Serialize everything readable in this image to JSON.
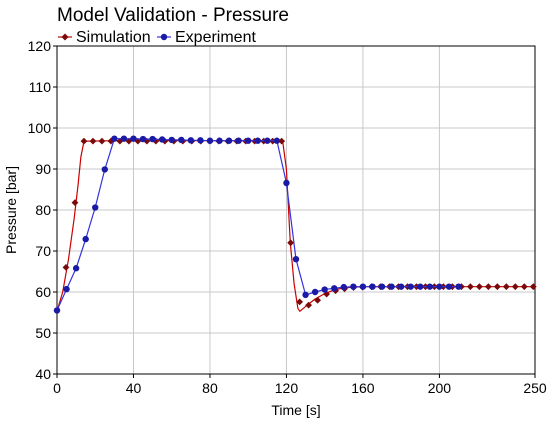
{
  "chart_data": {
    "type": "line",
    "title": "Model Validation - Pressure",
    "xlabel": "Time [s]",
    "ylabel": "Pressure [bar]",
    "xlim": [
      0,
      250
    ],
    "ylim": [
      40,
      120
    ],
    "xticks": [
      0,
      40,
      80,
      120,
      160,
      200,
      250
    ],
    "yticks": [
      40,
      50,
      60,
      70,
      80,
      90,
      100,
      110,
      120
    ],
    "grid": true,
    "legend_position": "top-left",
    "series": [
      {
        "name": "Simulation",
        "color": "#cc0000",
        "marker_color": "#7a0a0a",
        "marker": "diamond",
        "line": [
          [
            0,
            55.3
          ],
          [
            3,
            60
          ],
          [
            6,
            68
          ],
          [
            9,
            78
          ],
          [
            11,
            86
          ],
          [
            12.5,
            93
          ],
          [
            14,
            96.5
          ],
          [
            16,
            96.8
          ],
          [
            30,
            96.9
          ],
          [
            118,
            96.9
          ],
          [
            120,
            90
          ],
          [
            122,
            72
          ],
          [
            124,
            62
          ],
          [
            126,
            56
          ],
          [
            127,
            55.3
          ],
          [
            130,
            56.5
          ],
          [
            135,
            58.3
          ],
          [
            140,
            59.6
          ],
          [
            145,
            60.5
          ],
          [
            150,
            61
          ],
          [
            155,
            61.2
          ],
          [
            160,
            61.3
          ],
          [
            250,
            61.3
          ]
        ],
        "markers": [
          [
            0,
            55.5
          ],
          [
            4.7,
            66
          ],
          [
            9.4,
            81.8
          ],
          [
            14.1,
            96.8
          ],
          [
            18.8,
            96.8
          ],
          [
            23.5,
            96.8
          ],
          [
            28.2,
            96.8
          ],
          [
            32.9,
            96.8
          ],
          [
            37.6,
            96.8
          ],
          [
            42.3,
            96.8
          ],
          [
            47,
            96.8
          ],
          [
            51.7,
            96.8
          ],
          [
            56.4,
            96.8
          ],
          [
            61.1,
            96.8
          ],
          [
            65.8,
            96.8
          ],
          [
            70.5,
            96.8
          ],
          [
            75.2,
            96.8
          ],
          [
            79.9,
            96.8
          ],
          [
            84.6,
            96.8
          ],
          [
            89.3,
            96.8
          ],
          [
            94,
            96.8
          ],
          [
            98.7,
            96.8
          ],
          [
            103.4,
            96.8
          ],
          [
            108.1,
            96.8
          ],
          [
            112.8,
            96.8
          ],
          [
            117.5,
            96.8
          ],
          [
            122.2,
            72
          ],
          [
            126.9,
            57.6
          ],
          [
            131.6,
            56.8
          ],
          [
            136.3,
            58
          ],
          [
            141,
            59.5
          ],
          [
            145.7,
            60.3
          ],
          [
            150.4,
            60.8
          ],
          [
            155.1,
            61.1
          ],
          [
            159.8,
            61.2
          ],
          [
            164.5,
            61.3
          ],
          [
            169.2,
            61.3
          ],
          [
            173.9,
            61.3
          ],
          [
            178.6,
            61.3
          ],
          [
            183.3,
            61.3
          ],
          [
            188,
            61.3
          ],
          [
            192.7,
            61.3
          ],
          [
            197.4,
            61.3
          ],
          [
            202.1,
            61.3
          ],
          [
            206.8,
            61.3
          ],
          [
            211.5,
            61.3
          ],
          [
            216.2,
            61.3
          ],
          [
            220.9,
            61.3
          ],
          [
            225.6,
            61.3
          ],
          [
            230.3,
            61.3
          ],
          [
            235,
            61.3
          ],
          [
            239.7,
            61.3
          ],
          [
            244.4,
            61.3
          ],
          [
            249.1,
            61.3
          ]
        ]
      },
      {
        "name": "Experiment",
        "color": "#3333dd",
        "marker_color": "#1a1aa6",
        "marker": "circle",
        "line": [
          [
            0,
            55.5
          ],
          [
            5,
            60.7
          ],
          [
            10,
            65.8
          ],
          [
            15,
            72.9
          ],
          [
            20,
            80.6
          ],
          [
            25,
            89.9
          ],
          [
            30,
            97.4
          ],
          [
            35,
            97.4
          ],
          [
            40,
            97.4
          ],
          [
            45,
            97.3
          ],
          [
            50,
            97.3
          ],
          [
            55,
            97.2
          ],
          [
            60,
            97.1
          ],
          [
            65,
            97.1
          ],
          [
            70,
            97
          ],
          [
            75,
            97
          ],
          [
            80,
            96.9
          ],
          [
            85,
            96.9
          ],
          [
            90,
            96.9
          ],
          [
            95,
            96.9
          ],
          [
            100,
            96.9
          ],
          [
            105,
            96.9
          ],
          [
            110,
            96.9
          ],
          [
            115,
            96.9
          ],
          [
            120,
            86.6
          ],
          [
            125,
            68
          ],
          [
            130,
            59.3
          ],
          [
            135,
            60
          ],
          [
            140,
            60.6
          ],
          [
            145,
            60.9
          ],
          [
            150,
            61.2
          ],
          [
            155,
            61.3
          ],
          [
            160,
            61.3
          ],
          [
            165,
            61.3
          ],
          [
            170,
            61.3
          ],
          [
            175,
            61.3
          ],
          [
            180,
            61.3
          ],
          [
            185,
            61.3
          ],
          [
            190,
            61.3
          ],
          [
            195,
            61.3
          ],
          [
            200,
            61.3
          ],
          [
            205,
            61.3
          ],
          [
            210,
            61.3
          ]
        ],
        "markers": [
          [
            0,
            55.5
          ],
          [
            5,
            60.7
          ],
          [
            10,
            65.8
          ],
          [
            15,
            72.9
          ],
          [
            20,
            80.6
          ],
          [
            25,
            89.9
          ],
          [
            30,
            97.4
          ],
          [
            35,
            97.4
          ],
          [
            40,
            97.4
          ],
          [
            45,
            97.3
          ],
          [
            50,
            97.3
          ],
          [
            55,
            97.2
          ],
          [
            60,
            97.1
          ],
          [
            65,
            97.1
          ],
          [
            70,
            97
          ],
          [
            75,
            97
          ],
          [
            80,
            96.9
          ],
          [
            85,
            96.9
          ],
          [
            90,
            96.9
          ],
          [
            95,
            96.9
          ],
          [
            100,
            96.9
          ],
          [
            105,
            96.9
          ],
          [
            110,
            96.9
          ],
          [
            115,
            96.9
          ],
          [
            120,
            86.6
          ],
          [
            125,
            68
          ],
          [
            130,
            59.3
          ],
          [
            135,
            60
          ],
          [
            140,
            60.6
          ],
          [
            145,
            60.9
          ],
          [
            150,
            61.2
          ],
          [
            155,
            61.3
          ],
          [
            160,
            61.3
          ],
          [
            165,
            61.3
          ],
          [
            170,
            61.3
          ],
          [
            175,
            61.3
          ],
          [
            180,
            61.3
          ],
          [
            185,
            61.3
          ],
          [
            190,
            61.3
          ],
          [
            195,
            61.3
          ],
          [
            200,
            61.3
          ],
          [
            205,
            61.3
          ],
          [
            210,
            61.3
          ]
        ]
      }
    ]
  }
}
